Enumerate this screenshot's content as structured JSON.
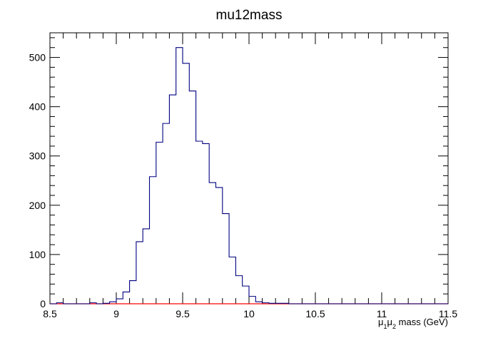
{
  "chart_data": {
    "type": "histogram",
    "title": "mu12mass",
    "xlabel_parts": {
      "mu1": "μ",
      "sub1": "1",
      "mu2": "μ",
      "sub2": "2",
      "rest": " mass (GeV)"
    },
    "xlabel": "μ1μ2 mass (GeV)",
    "ylabel": "",
    "xlim": [
      8.5,
      11.5
    ],
    "ylim": [
      0,
      550
    ],
    "x_ticks": [
      "8.5",
      "9",
      "9.5",
      "10",
      "10.5",
      "11",
      "11.5"
    ],
    "y_ticks": [
      "0",
      "100",
      "200",
      "300",
      "400",
      "500"
    ],
    "grid": false,
    "bins": {
      "start": 8.5,
      "width": 0.05,
      "values": [
        0,
        2,
        0,
        0,
        0,
        0,
        2,
        0,
        1,
        4,
        10,
        24,
        47,
        126,
        152,
        258,
        328,
        366,
        424,
        520,
        488,
        432,
        330,
        325,
        246,
        236,
        183,
        95,
        57,
        36,
        15,
        4,
        2,
        1,
        1,
        1,
        0,
        0,
        0,
        0,
        0,
        0,
        0,
        0,
        0,
        0,
        0,
        0,
        0,
        0,
        0,
        0,
        0,
        0,
        0,
        0,
        0,
        0,
        0,
        0
      ]
    },
    "series": [
      {
        "name": "",
        "color": "#000080"
      },
      {
        "name": "",
        "color": "#ff0000",
        "values_constant": 0
      }
    ]
  }
}
